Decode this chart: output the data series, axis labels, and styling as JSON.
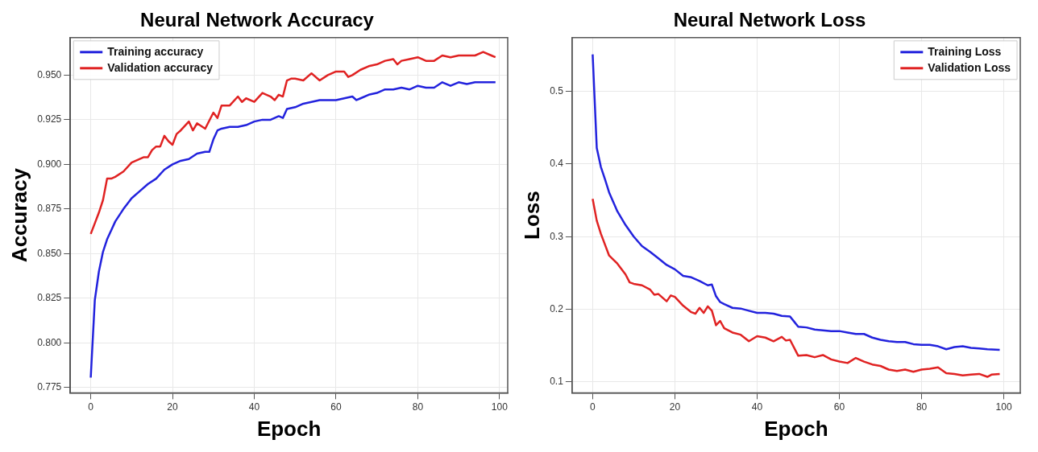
{
  "chart_data": [
    {
      "type": "line",
      "title": "Neural Network Accuracy",
      "xlabel": "Epoch",
      "ylabel": "Accuracy",
      "xlim": [
        -5,
        102
      ],
      "xticks": [
        0,
        20,
        40,
        60,
        80,
        100
      ],
      "ylim": [
        0.772,
        0.971
      ],
      "yticks": [
        {
          "value": 0.775,
          "label": "0.775"
        },
        {
          "value": 0.8,
          "label": "0.800"
        },
        {
          "value": 0.825,
          "label": "0.825"
        },
        {
          "value": 0.85,
          "label": "0.850"
        },
        {
          "value": 0.875,
          "label": "0.875"
        },
        {
          "value": 0.9,
          "label": "0.900"
        },
        {
          "value": 0.925,
          "label": "0.925"
        },
        {
          "value": 0.95,
          "label": "0.950"
        }
      ],
      "grid": true,
      "legend": "top left",
      "series": [
        {
          "name": "Training accuracy",
          "color": "#2222dd",
          "x": [
            0,
            1,
            2,
            3,
            4,
            5,
            6,
            8,
            10,
            12,
            14,
            16,
            18,
            20,
            22,
            24,
            26,
            28,
            29,
            30,
            31,
            32,
            34,
            36,
            38,
            40,
            42,
            44,
            46,
            47,
            48,
            50,
            52,
            54,
            56,
            58,
            60,
            62,
            64,
            65,
            66,
            68,
            70,
            72,
            74,
            76,
            78,
            80,
            82,
            84,
            86,
            88,
            90,
            92,
            94,
            96,
            98,
            99
          ],
          "values": [
            0.7805,
            0.824,
            0.84,
            0.851,
            0.858,
            0.863,
            0.868,
            0.875,
            0.881,
            0.885,
            0.889,
            0.892,
            0.897,
            0.9,
            0.902,
            0.903,
            0.906,
            0.907,
            0.907,
            0.914,
            0.919,
            0.92,
            0.921,
            0.921,
            0.922,
            0.924,
            0.925,
            0.925,
            0.927,
            0.926,
            0.931,
            0.932,
            0.934,
            0.935,
            0.936,
            0.936,
            0.936,
            0.937,
            0.938,
            0.936,
            0.937,
            0.939,
            0.94,
            0.942,
            0.942,
            0.943,
            0.942,
            0.944,
            0.943,
            0.943,
            0.946,
            0.944,
            0.946,
            0.945,
            0.946,
            0.946,
            0.946,
            0.946
          ]
        },
        {
          "name": "Validation accuracy",
          "color": "#e02222",
          "x": [
            0,
            1,
            2,
            3,
            4,
            5,
            6,
            8,
            10,
            12,
            13,
            14,
            15,
            16,
            17,
            18,
            19,
            20,
            21,
            22,
            24,
            25,
            26,
            28,
            30,
            31,
            32,
            34,
            36,
            37,
            38,
            40,
            42,
            44,
            45,
            46,
            47,
            48,
            49,
            50,
            52,
            54,
            56,
            58,
            60,
            62,
            63,
            64,
            66,
            68,
            70,
            72,
            74,
            75,
            76,
            78,
            80,
            82,
            84,
            86,
            88,
            90,
            92,
            94,
            96,
            98,
            99
          ],
          "values": [
            0.861,
            0.867,
            0.873,
            0.88,
            0.892,
            0.892,
            0.893,
            0.896,
            0.901,
            0.903,
            0.904,
            0.904,
            0.908,
            0.91,
            0.91,
            0.916,
            0.913,
            0.911,
            0.917,
            0.919,
            0.924,
            0.919,
            0.923,
            0.92,
            0.929,
            0.926,
            0.933,
            0.933,
            0.938,
            0.935,
            0.937,
            0.935,
            0.94,
            0.938,
            0.936,
            0.939,
            0.938,
            0.947,
            0.948,
            0.948,
            0.947,
            0.951,
            0.947,
            0.95,
            0.952,
            0.952,
            0.949,
            0.95,
            0.953,
            0.955,
            0.956,
            0.958,
            0.959,
            0.956,
            0.958,
            0.959,
            0.96,
            0.958,
            0.958,
            0.961,
            0.96,
            0.961,
            0.961,
            0.961,
            0.963,
            0.961,
            0.96
          ]
        }
      ]
    },
    {
      "type": "line",
      "title": "Neural Network Loss",
      "xlabel": "Epoch",
      "ylabel": "Loss",
      "xlim": [
        -5,
        104
      ],
      "xticks": [
        0,
        20,
        40,
        60,
        80,
        100
      ],
      "ylim": [
        0.085,
        0.574
      ],
      "yticks": [
        0.1,
        0.2,
        0.3,
        0.4,
        0.5
      ],
      "grid": true,
      "legend": "top right",
      "series": [
        {
          "name": "Training Loss",
          "color": "#2222dd",
          "x": [
            0,
            1,
            2,
            3,
            4,
            5,
            6,
            8,
            10,
            12,
            14,
            16,
            18,
            20,
            22,
            24,
            26,
            28,
            29,
            30,
            31,
            32,
            34,
            36,
            38,
            40,
            42,
            44,
            46,
            48,
            49,
            50,
            52,
            54,
            56,
            58,
            60,
            62,
            64,
            66,
            68,
            70,
            72,
            74,
            76,
            78,
            80,
            82,
            84,
            86,
            88,
            90,
            92,
            94,
            96,
            99
          ],
          "values": [
            0.551,
            0.422,
            0.396,
            0.379,
            0.361,
            0.348,
            0.335,
            0.316,
            0.3,
            0.287,
            0.279,
            0.27,
            0.261,
            0.255,
            0.246,
            0.244,
            0.239,
            0.233,
            0.234,
            0.218,
            0.21,
            0.207,
            0.202,
            0.201,
            0.198,
            0.195,
            0.195,
            0.194,
            0.191,
            0.19,
            0.183,
            0.176,
            0.175,
            0.172,
            0.171,
            0.17,
            0.17,
            0.168,
            0.166,
            0.166,
            0.161,
            0.158,
            0.156,
            0.155,
            0.155,
            0.152,
            0.151,
            0.151,
            0.149,
            0.145,
            0.148,
            0.149,
            0.147,
            0.146,
            0.145,
            0.144
          ]
        },
        {
          "name": "Validation Loss",
          "color": "#e02222",
          "x": [
            0,
            1,
            2,
            4,
            6,
            8,
            9,
            10,
            12,
            14,
            15,
            16,
            18,
            19,
            20,
            22,
            24,
            25,
            26,
            27,
            28,
            29,
            30,
            31,
            32,
            34,
            36,
            38,
            40,
            42,
            44,
            46,
            47,
            48,
            50,
            52,
            54,
            56,
            58,
            60,
            62,
            64,
            66,
            68,
            70,
            72,
            74,
            76,
            78,
            80,
            82,
            84,
            86,
            88,
            90,
            92,
            94,
            96,
            97,
            99
          ],
          "values": [
            0.352,
            0.322,
            0.304,
            0.274,
            0.263,
            0.248,
            0.237,
            0.235,
            0.233,
            0.227,
            0.22,
            0.221,
            0.211,
            0.219,
            0.217,
            0.205,
            0.196,
            0.194,
            0.202,
            0.195,
            0.204,
            0.198,
            0.178,
            0.184,
            0.174,
            0.168,
            0.165,
            0.156,
            0.163,
            0.161,
            0.156,
            0.162,
            0.157,
            0.158,
            0.136,
            0.137,
            0.134,
            0.137,
            0.131,
            0.128,
            0.126,
            0.133,
            0.128,
            0.124,
            0.122,
            0.117,
            0.115,
            0.117,
            0.114,
            0.117,
            0.118,
            0.12,
            0.112,
            0.111,
            0.109,
            0.11,
            0.111,
            0.107,
            0.11,
            0.111
          ]
        }
      ]
    }
  ]
}
